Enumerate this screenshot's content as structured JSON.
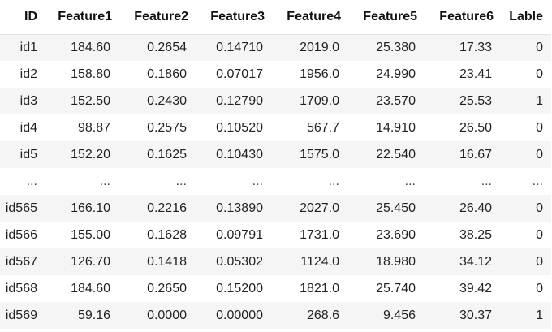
{
  "table": {
    "columns": [
      "ID",
      "Feature1",
      "Feature2",
      "Feature3",
      "Feature4",
      "Feature5",
      "Feature6",
      "Lable"
    ],
    "rows": [
      [
        "id1",
        "184.60",
        "0.2654",
        "0.14710",
        "2019.0",
        "25.380",
        "17.33",
        "0"
      ],
      [
        "id2",
        "158.80",
        "0.1860",
        "0.07017",
        "1956.0",
        "24.990",
        "23.41",
        "0"
      ],
      [
        "id3",
        "152.50",
        "0.2430",
        "0.12790",
        "1709.0",
        "23.570",
        "25.53",
        "1"
      ],
      [
        "id4",
        "98.87",
        "0.2575",
        "0.10520",
        "567.7",
        "14.910",
        "26.50",
        "0"
      ],
      [
        "id5",
        "152.20",
        "0.1625",
        "0.10430",
        "1575.0",
        "22.540",
        "16.67",
        "0"
      ],
      [
        "...",
        "...",
        "...",
        "...",
        "...",
        "...",
        "...",
        "..."
      ],
      [
        "id565",
        "166.10",
        "0.2216",
        "0.13890",
        "2027.0",
        "25.450",
        "26.40",
        "0"
      ],
      [
        "id566",
        "155.00",
        "0.1628",
        "0.09791",
        "1731.0",
        "23.690",
        "38.25",
        "0"
      ],
      [
        "id567",
        "126.70",
        "0.1418",
        "0.05302",
        "1124.0",
        "18.980",
        "34.12",
        "0"
      ],
      [
        "id568",
        "184.60",
        "0.2650",
        "0.15200",
        "1821.0",
        "25.740",
        "39.42",
        "0"
      ],
      [
        "id569",
        "59.16",
        "0.0000",
        "0.00000",
        "268.6",
        "9.456",
        "30.37",
        "1"
      ]
    ]
  }
}
